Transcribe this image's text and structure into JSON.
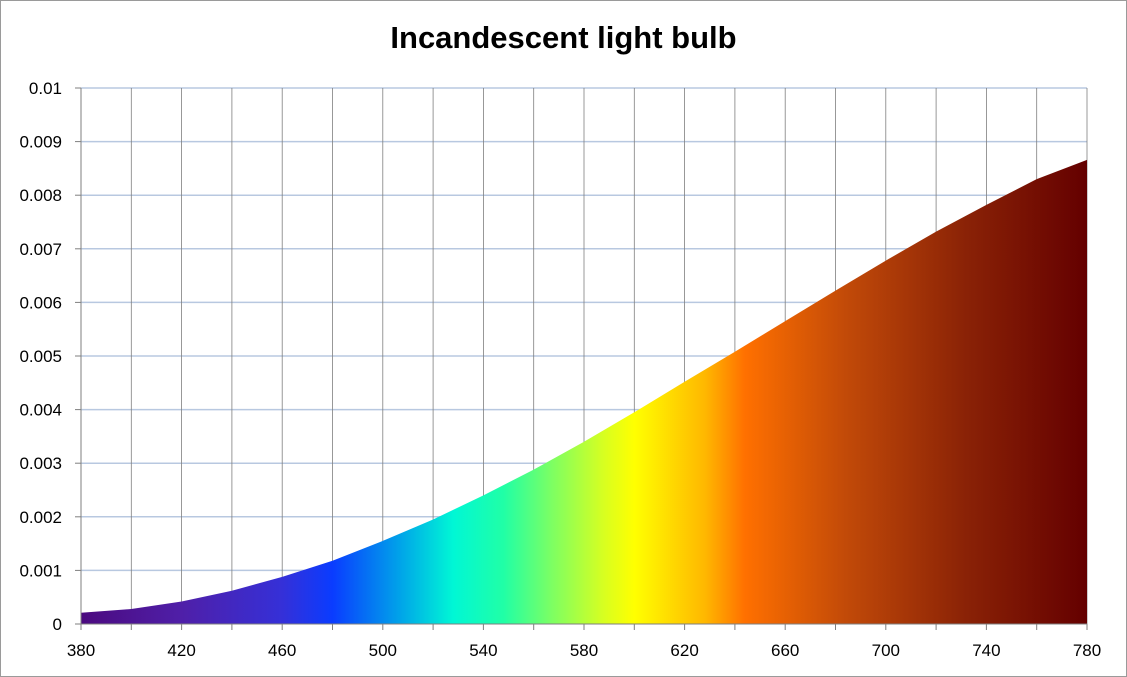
{
  "chart_data": {
    "type": "area",
    "title": "Incandescent light bulb",
    "xlabel": "",
    "ylabel": "",
    "xlim": [
      380,
      780
    ],
    "ylim": [
      0,
      0.01
    ],
    "x_ticks": [
      "380",
      "420",
      "460",
      "500",
      "540",
      "580",
      "620",
      "660",
      "700",
      "740",
      "780"
    ],
    "y_ticks": [
      "0",
      "0.001",
      "0.002",
      "0.003",
      "0.004",
      "0.005",
      "0.006",
      "0.007",
      "0.008",
      "0.009",
      "0.01"
    ],
    "grid": true,
    "legend": "none",
    "series": [
      {
        "x": [
          380,
          400,
          420,
          440,
          460,
          480,
          500,
          520,
          540,
          560,
          580,
          600,
          620,
          640,
          660,
          680,
          700,
          720,
          740,
          760,
          780
        ],
        "values": [
          0.00021,
          0.00028,
          0.00042,
          0.00062,
          0.00088,
          0.00118,
          0.00155,
          0.00195,
          0.0024,
          0.00288,
          0.0034,
          0.00395,
          0.00452,
          0.00508,
          0.00565,
          0.00622,
          0.00678,
          0.00732,
          0.00782,
          0.0083,
          0.00866
        ]
      }
    ],
    "gradient_colors": [
      {
        "at": 0.0,
        "color": "#4b0a7f"
      },
      {
        "at": 0.1,
        "color": "#4f1fa8"
      },
      {
        "at": 0.2,
        "color": "#3530d8"
      },
      {
        "at": 0.25,
        "color": "#0a3cff"
      },
      {
        "at": 0.32,
        "color": "#00a8e8"
      },
      {
        "at": 0.37,
        "color": "#00f7d5"
      },
      {
        "at": 0.42,
        "color": "#20ffa6"
      },
      {
        "at": 0.47,
        "color": "#80ff60"
      },
      {
        "at": 0.52,
        "color": "#d8ff20"
      },
      {
        "at": 0.55,
        "color": "#ffff00"
      },
      {
        "at": 0.62,
        "color": "#ffb800"
      },
      {
        "at": 0.66,
        "color": "#ff7000"
      },
      {
        "at": 0.76,
        "color": "#c24a08"
      },
      {
        "at": 0.88,
        "color": "#8a2206"
      },
      {
        "at": 1.0,
        "color": "#640000"
      }
    ],
    "grid_colors": {
      "horizontal": "#b8c8e0",
      "vertical": "#7f7f7f",
      "axis": "#7f7f7f"
    }
  }
}
